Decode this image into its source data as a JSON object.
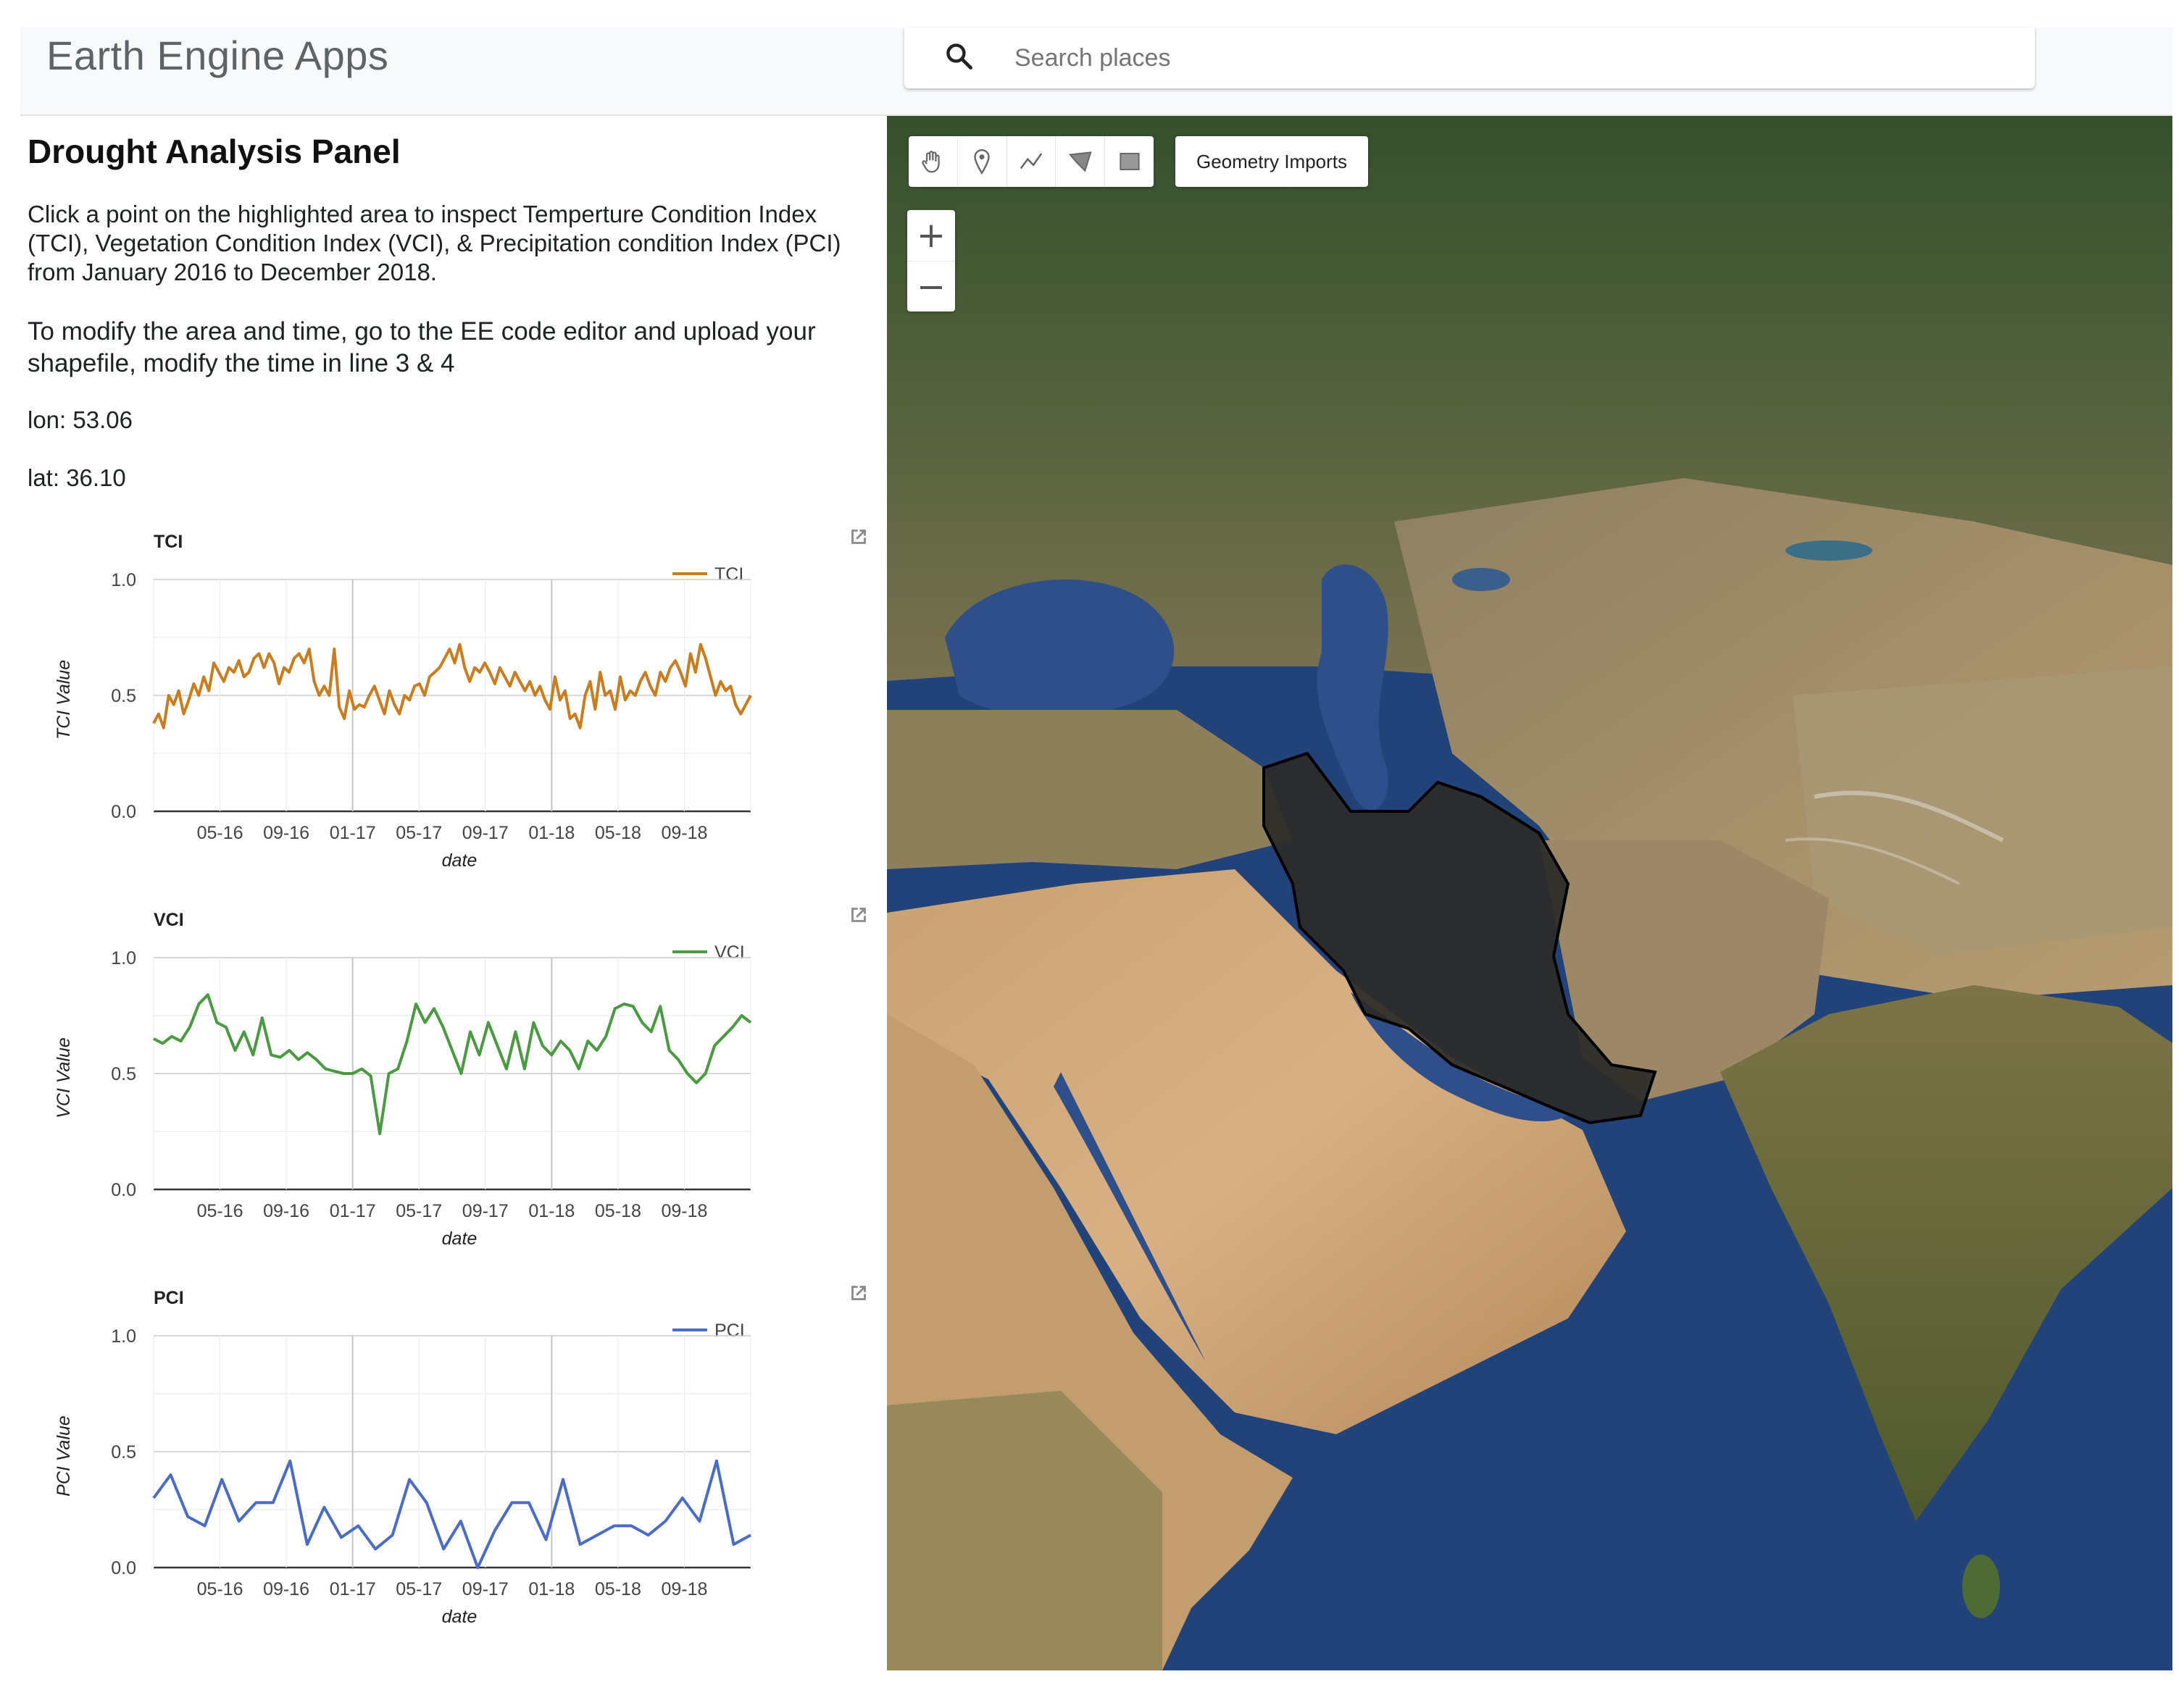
{
  "header": {
    "app_title": "Earth Engine Apps",
    "search_placeholder": "Search places"
  },
  "panel": {
    "title": "Drought Analysis Panel",
    "description": "Click a point on the highlighted area to inspect Temperture Condition Index (TCI), Vegetation Condition Index (VCI), & Precipitation condition Index (PCI) from January 2016 to December 2018.",
    "instructions": "To modify the area and time, go to the EE code editor and upload your shapefile, modify the time in line 3 & 4",
    "lon_text": "lon: 53.06",
    "lat_text": "lat: 36.10"
  },
  "map": {
    "geometry_imports_label": "Geometry Imports",
    "zoom_in": "+",
    "zoom_out": "−",
    "tools": [
      "hand-icon",
      "marker-icon",
      "polyline-icon",
      "polygon-icon",
      "rectangle-icon"
    ]
  },
  "chart_data": [
    {
      "type": "line",
      "title": "TCI",
      "xlabel": "date",
      "ylabel": "TCI Value",
      "ylim": [
        0,
        1
      ],
      "yticks": [
        "0.0",
        "0.5",
        "1.0"
      ],
      "xticks": [
        "05-16",
        "09-16",
        "01-17",
        "05-17",
        "09-17",
        "01-18",
        "05-18",
        "09-18"
      ],
      "color": "#c97d1e",
      "series": [
        {
          "name": "TCI",
          "values": [
            0.38,
            0.42,
            0.36,
            0.5,
            0.46,
            0.52,
            0.42,
            0.48,
            0.55,
            0.5,
            0.58,
            0.52,
            0.64,
            0.6,
            0.56,
            0.62,
            0.6,
            0.65,
            0.58,
            0.6,
            0.66,
            0.68,
            0.62,
            0.68,
            0.64,
            0.55,
            0.62,
            0.6,
            0.66,
            0.68,
            0.64,
            0.7,
            0.56,
            0.5,
            0.54,
            0.5,
            0.7,
            0.45,
            0.4,
            0.52,
            0.44,
            0.46,
            0.45,
            0.5,
            0.54,
            0.48,
            0.42,
            0.52,
            0.46,
            0.42,
            0.5,
            0.48,
            0.54,
            0.55,
            0.5,
            0.58,
            0.6,
            0.62,
            0.66,
            0.7,
            0.64,
            0.72,
            0.62,
            0.56,
            0.62,
            0.6,
            0.64,
            0.6,
            0.55,
            0.62,
            0.58,
            0.54,
            0.6,
            0.56,
            0.52,
            0.56,
            0.5,
            0.54,
            0.48,
            0.44,
            0.58,
            0.48,
            0.52,
            0.4,
            0.42,
            0.36,
            0.5,
            0.56,
            0.44,
            0.6,
            0.5,
            0.52,
            0.44,
            0.58,
            0.48,
            0.52,
            0.5,
            0.56,
            0.6,
            0.54,
            0.5,
            0.6,
            0.56,
            0.62,
            0.65,
            0.6,
            0.54,
            0.68,
            0.6,
            0.72,
            0.66,
            0.58,
            0.5,
            0.56,
            0.52,
            0.54,
            0.46,
            0.42,
            0.46,
            0.5
          ]
        }
      ]
    },
    {
      "type": "line",
      "title": "VCI",
      "xlabel": "date",
      "ylabel": "VCI Value",
      "ylim": [
        0,
        1
      ],
      "yticks": [
        "0.0",
        "0.5",
        "1.0"
      ],
      "xticks": [
        "05-16",
        "09-16",
        "01-17",
        "05-17",
        "09-17",
        "01-18",
        "05-18",
        "09-18"
      ],
      "color": "#4a9a42",
      "series": [
        {
          "name": "VCI",
          "values": [
            0.65,
            0.63,
            0.66,
            0.64,
            0.7,
            0.8,
            0.84,
            0.72,
            0.7,
            0.6,
            0.68,
            0.58,
            0.74,
            0.58,
            0.57,
            0.6,
            0.56,
            0.59,
            0.56,
            0.52,
            0.51,
            0.5,
            0.5,
            0.52,
            0.49,
            0.24,
            0.5,
            0.52,
            0.64,
            0.8,
            0.72,
            0.78,
            0.7,
            0.6,
            0.5,
            0.68,
            0.58,
            0.72,
            0.62,
            0.52,
            0.68,
            0.52,
            0.72,
            0.62,
            0.58,
            0.64,
            0.6,
            0.52,
            0.64,
            0.6,
            0.66,
            0.78,
            0.8,
            0.79,
            0.72,
            0.68,
            0.79,
            0.6,
            0.56,
            0.5,
            0.46,
            0.5,
            0.62,
            0.66,
            0.7,
            0.75,
            0.72
          ]
        }
      ]
    },
    {
      "type": "line",
      "title": "PCI",
      "xlabel": "date",
      "ylabel": "PCI Value",
      "ylim": [
        0,
        1
      ],
      "yticks": [
        "0.0",
        "0.5",
        "1.0"
      ],
      "xticks": [
        "05-16",
        "09-16",
        "01-17",
        "05-17",
        "09-17",
        "01-18",
        "05-18",
        "09-18"
      ],
      "color": "#4a6cc4",
      "series": [
        {
          "name": "PCI",
          "values": [
            0.3,
            0.4,
            0.22,
            0.18,
            0.38,
            0.2,
            0.28,
            0.28,
            0.46,
            0.1,
            0.26,
            0.13,
            0.18,
            0.08,
            0.14,
            0.38,
            0.28,
            0.08,
            0.2,
            0.0,
            0.16,
            0.28,
            0.28,
            0.12,
            0.38,
            0.1,
            0.14,
            0.18,
            0.18,
            0.14,
            0.2,
            0.3,
            0.2,
            0.46,
            0.1,
            0.14
          ]
        }
      ]
    }
  ]
}
